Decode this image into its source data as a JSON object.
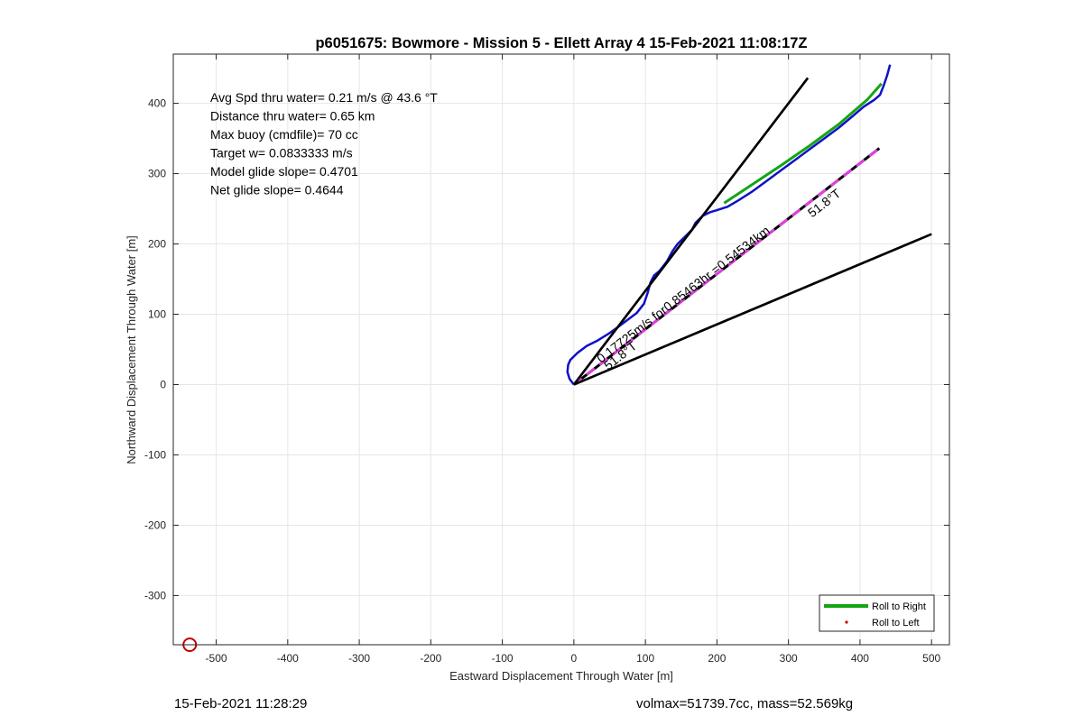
{
  "chart_data": {
    "type": "line",
    "title": "p6051675: Bowmore - Mission 5 - Ellett Array 4 15-Feb-2021 11:08:17Z",
    "xlabel": "Eastward Displacement Through Water [m]",
    "ylabel": "Northward Displacement Through Water [m]",
    "xlim": [
      -560,
      525
    ],
    "ylim": [
      -370,
      470
    ],
    "xticks": [
      -500,
      -400,
      -300,
      -200,
      -100,
      0,
      100,
      200,
      300,
      400,
      500
    ],
    "yticks": [
      -300,
      -200,
      -100,
      0,
      100,
      200,
      300,
      400
    ],
    "xtick_labels": [
      "-500",
      "-400",
      "-300",
      "-200",
      "-100",
      "0",
      "100",
      "200",
      "300",
      "400",
      "500"
    ],
    "ytick_labels": [
      "-300",
      "-200",
      "-100",
      "0",
      "100",
      "200",
      "300",
      "400"
    ],
    "grid": true,
    "legend_position": "bottom-right",
    "info_lines": [
      "Avg Spd thru water=  0.21 m/s @  43.6 °T",
      "Distance thru water=  0.65 km",
      "Max buoy (cmdfile)= 70 cc",
      "Target w= 0.0833333 m/s",
      "Model glide slope= 0.4701",
      "Net glide slope= 0.4644"
    ],
    "series": [
      {
        "kind": "track",
        "color": "#1010c8",
        "x": [
          0,
          -6,
          -9,
          -8,
          -5,
          5,
          18,
          32,
          48,
          62,
          75,
          88,
          98,
          103,
          107,
          112,
          120,
          130,
          138,
          145,
          150,
          155,
          160,
          165,
          170,
          180,
          190,
          200,
          215,
          230,
          250,
          270,
          290,
          310,
          330,
          350,
          370,
          390,
          405,
          420,
          428,
          433,
          438,
          442
        ],
        "y": [
          0,
          8,
          18,
          28,
          35,
          45,
          55,
          62,
          72,
          82,
          92,
          102,
          115,
          130,
          145,
          155,
          162,
          175,
          190,
          200,
          205,
          210,
          215,
          220,
          230,
          240,
          245,
          248,
          253,
          262,
          275,
          290,
          305,
          320,
          335,
          350,
          365,
          382,
          395,
          405,
          412,
          425,
          440,
          455
        ]
      },
      {
        "name": "Roll to Right",
        "kind": "roll-right",
        "color": "#14a514",
        "x": [
          210,
          250,
          290,
          330,
          370,
          410,
          430
        ],
        "y": [
          258,
          285,
          312,
          340,
          370,
          405,
          428
        ]
      },
      {
        "name": "Roll to Left",
        "kind": "roll-left",
        "color": "#d00000",
        "x": [],
        "y": []
      },
      {
        "kind": "bound-line",
        "color": "#000000",
        "x": [
          0,
          327
        ],
        "y": [
          0,
          436
        ]
      },
      {
        "kind": "bound-line",
        "color": "#000000",
        "x": [
          0,
          500
        ],
        "y": [
          0,
          214
        ]
      },
      {
        "kind": "heading-line",
        "color": "#000000",
        "dash_color": "#e040e0",
        "x": [
          0,
          427
        ],
        "y": [
          0,
          336
        ]
      }
    ],
    "annotations": [
      {
        "text": "0.17725m/s for0.85463hr =0.54534km",
        "x": 38,
        "y": 30
      },
      {
        "text": "51.8°T",
        "x": 48,
        "y": 20
      },
      {
        "text": "51.8°T",
        "x": 333,
        "y": 237
      }
    ],
    "marker": {
      "kind": "circle",
      "color": "#c00000",
      "x": -537,
      "y": -370
    }
  },
  "footer": {
    "left": "15-Feb-2021 11:28:29",
    "right": "volmax=51739.7cc, mass=52.569kg"
  }
}
